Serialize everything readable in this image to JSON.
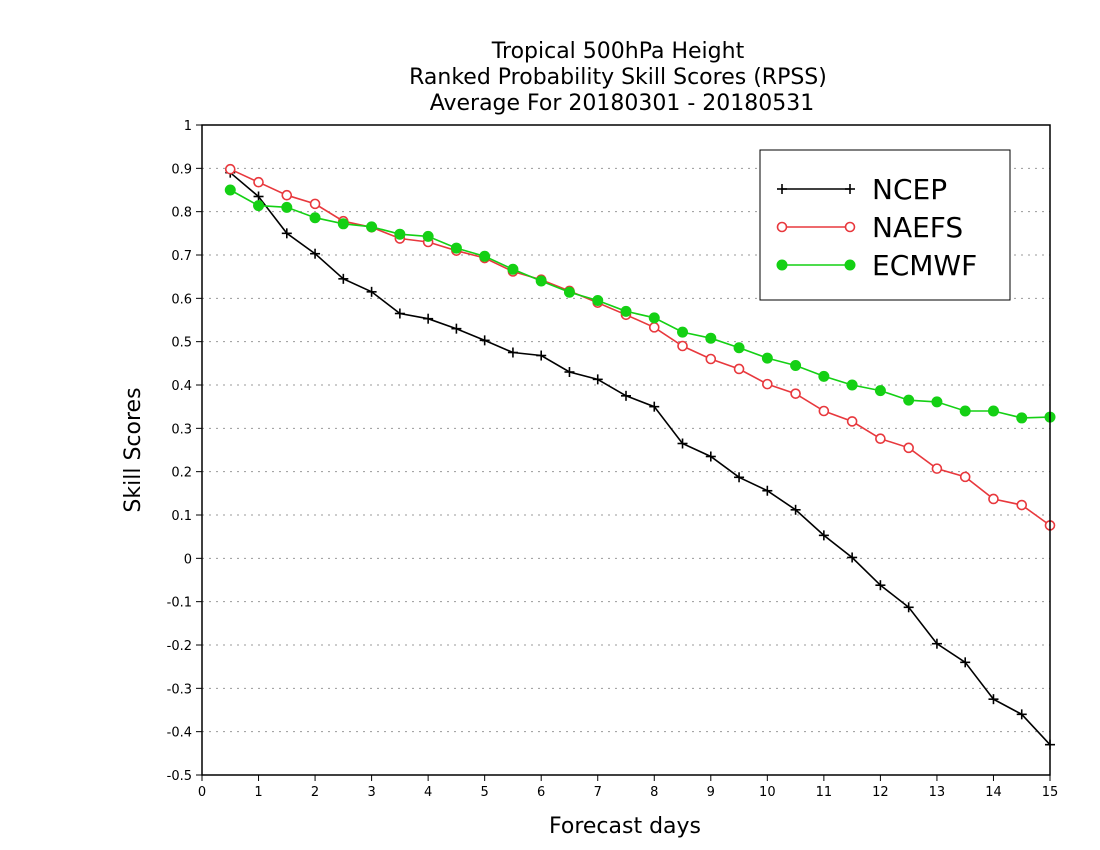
{
  "chart_data": {
    "type": "line",
    "title": [
      "Tropical 500hPa Height",
      "Ranked Probability Skill Scores (RPSS)",
      "Average For 20180301 - 20180531"
    ],
    "xlabel": "Forecast days",
    "ylabel": "Skill Scores",
    "xlim": [
      0,
      15
    ],
    "ylim": [
      -0.5,
      1
    ],
    "xticks": [
      0,
      1,
      2,
      3,
      4,
      5,
      6,
      7,
      8,
      9,
      10,
      11,
      12,
      13,
      14,
      15
    ],
    "yticks": [
      -0.5,
      -0.4,
      -0.3,
      -0.2,
      -0.1,
      0,
      0.1,
      0.2,
      0.3,
      0.4,
      0.5,
      0.6,
      0.7,
      0.8,
      0.9,
      1
    ],
    "ytick_labels": [
      "-0.5",
      "-0.4",
      "-0.3",
      "-0.2",
      "-0.1",
      "0",
      "0.1",
      "0.2",
      "0.3",
      "0.4",
      "0.5",
      "0.6",
      "0.7",
      "0.8",
      "0.9",
      "1"
    ],
    "grid": "horizontal-dotted",
    "legend_position": "top-right",
    "x": [
      0.5,
      1,
      1.5,
      2,
      2.5,
      3,
      3.5,
      4,
      4.5,
      5,
      5.5,
      6,
      6.5,
      7,
      7.5,
      8,
      8.5,
      9,
      9.5,
      10,
      10.5,
      11,
      11.5,
      12,
      12.5,
      13,
      13.5,
      14,
      14.5,
      15
    ],
    "series": [
      {
        "name": "NCEP",
        "color": "#000000",
        "marker": "plus",
        "values": [
          0.89,
          0.835,
          0.75,
          0.703,
          0.645,
          0.615,
          0.565,
          0.553,
          0.53,
          0.503,
          0.475,
          0.468,
          0.43,
          0.413,
          0.375,
          0.35,
          0.265,
          0.235,
          0.187,
          0.156,
          0.112,
          0.053,
          0.002,
          -0.062,
          -0.113,
          -0.197,
          -0.24,
          -0.325,
          -0.36,
          -0.43
        ]
      },
      {
        "name": "NAEFS",
        "color": "#e8383d",
        "marker": "open-circle",
        "values": [
          0.898,
          0.868,
          0.838,
          0.818,
          0.778,
          0.764,
          0.738,
          0.73,
          0.71,
          0.693,
          0.662,
          0.643,
          0.617,
          0.59,
          0.562,
          0.533,
          0.49,
          0.46,
          0.437,
          0.402,
          0.38,
          0.34,
          0.316,
          0.276,
          0.255,
          0.207,
          0.188,
          0.137,
          0.123,
          0.076
        ]
      },
      {
        "name": "ECMWF",
        "color": "#14d014",
        "marker": "filled-circle",
        "values": [
          0.85,
          0.814,
          0.81,
          0.786,
          0.772,
          0.765,
          0.748,
          0.743,
          0.716,
          0.697,
          0.667,
          0.64,
          0.614,
          0.595,
          0.57,
          0.555,
          0.522,
          0.508,
          0.486,
          0.462,
          0.445,
          0.42,
          0.4,
          0.387,
          0.365,
          0.361,
          0.34,
          0.34,
          0.324,
          0.326
        ]
      }
    ]
  }
}
